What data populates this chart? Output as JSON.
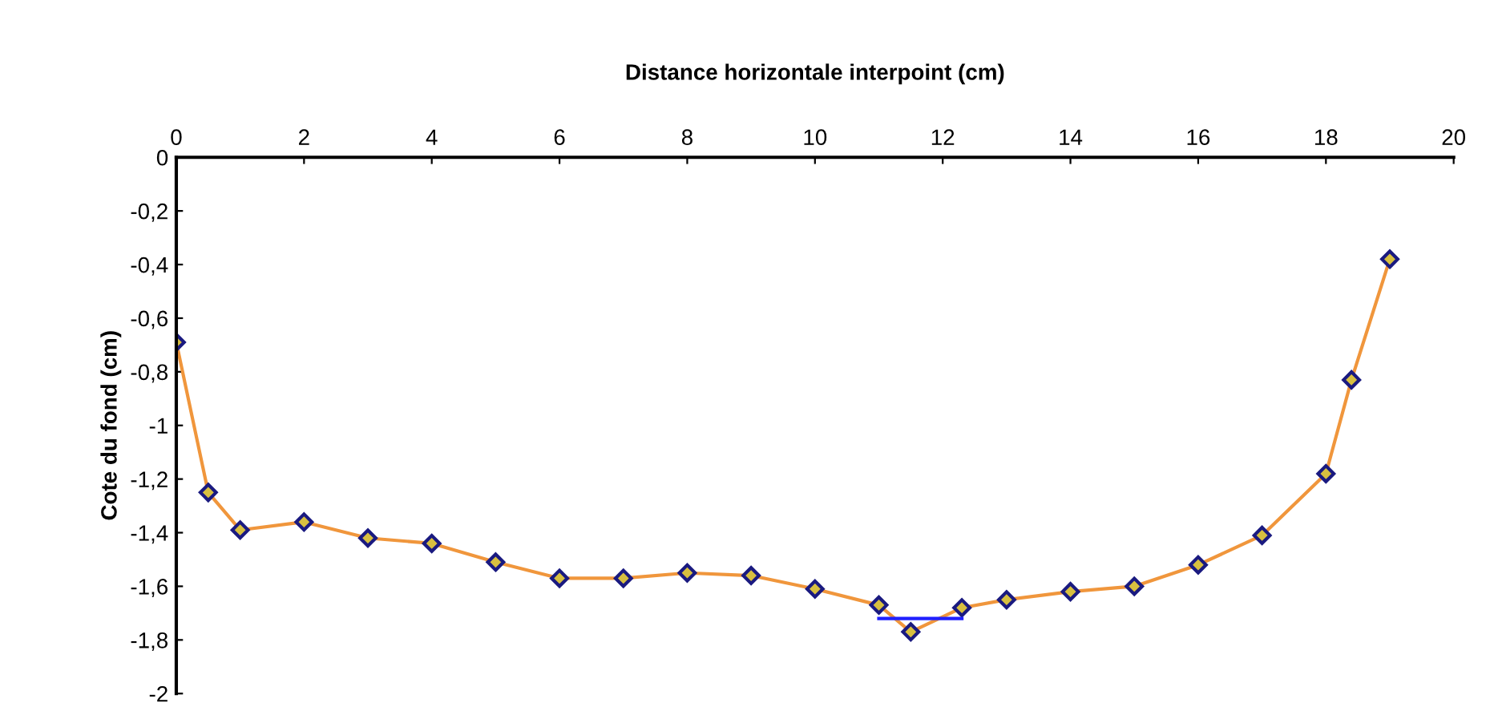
{
  "chart_data": {
    "type": "line",
    "xlabel": "Distance horizontale interpoint (cm)",
    "ylabel": "Cote du fond (cm)",
    "xlim": [
      0,
      20
    ],
    "xticks": [
      0,
      2,
      4,
      6,
      8,
      10,
      12,
      14,
      16,
      18,
      20
    ],
    "ylim": [
      -2,
      0
    ],
    "yticks": [
      0,
      {
        "value": -0.2,
        "label": "-0,2"
      },
      {
        "value": -0.4,
        "label": "-0,4"
      },
      {
        "value": -0.6,
        "label": "-0,6"
      },
      {
        "value": -0.8,
        "label": "-0,8"
      },
      -1,
      {
        "value": -1.2,
        "label": "-1,2"
      },
      {
        "value": -1.4,
        "label": "-1,4"
      },
      {
        "value": -1.6,
        "label": "-1,6"
      },
      {
        "value": -1.8,
        "label": "-1,8"
      },
      -2
    ],
    "grid": false,
    "legend": false,
    "series": [
      {
        "color": "#f0963c",
        "marker": "diamond",
        "x": [
          0,
          0.5,
          1,
          2,
          3,
          4,
          5,
          6,
          7,
          8,
          9,
          10,
          11,
          11.5,
          12.3,
          13,
          14,
          15,
          16,
          17,
          18,
          18.4,
          19
        ],
        "values": [
          -0.69,
          -1.25,
          -1.39,
          -1.36,
          -1.42,
          -1.44,
          -1.51,
          -1.57,
          -1.57,
          -1.55,
          -1.56,
          -1.61,
          -1.67,
          -1.77,
          -1.68,
          -1.65,
          -1.62,
          -1.6,
          -1.52,
          -1.41,
          -1.18,
          -0.83,
          -0.38
        ]
      },
      {
        "color": "#2020ff",
        "marker": "none",
        "x": [
          11,
          12.3
        ],
        "values": [
          -1.72,
          -1.72
        ]
      }
    ]
  }
}
